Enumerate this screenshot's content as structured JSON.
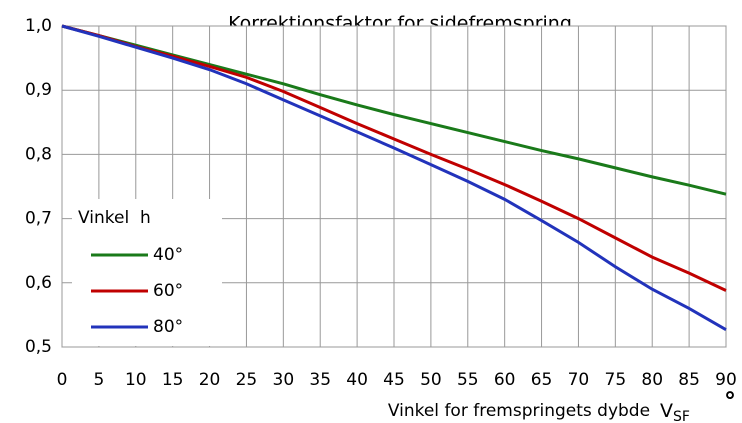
{
  "chart_data": {
    "type": "line",
    "title": "Korrektionsfaktor for sidefremspring",
    "xlabel": "Vinkel for fremspringets dybde",
    "xlabel_symbol": "V",
    "xlabel_subscript": "SF",
    "xlabel_unit": "°",
    "legend_title": "Vinkel  h",
    "legend": "lower-left",
    "grid": true,
    "x": [
      0,
      5,
      10,
      15,
      20,
      25,
      30,
      35,
      40,
      45,
      50,
      55,
      60,
      65,
      70,
      75,
      80,
      85,
      90
    ],
    "xlim": [
      0,
      90
    ],
    "xticks": [
      0,
      5,
      10,
      15,
      20,
      25,
      30,
      35,
      40,
      45,
      50,
      55,
      60,
      65,
      70,
      75,
      80,
      85,
      90
    ],
    "ylim": [
      0.5,
      1.0
    ],
    "yticks": [
      {
        "value": 0.5,
        "label": "0,5"
      },
      {
        "value": 0.6,
        "label": "0,6"
      },
      {
        "value": 0.7,
        "label": "0,7"
      },
      {
        "value": 0.8,
        "label": "0,8"
      },
      {
        "value": 0.9,
        "label": "0,9"
      },
      {
        "value": 1.0,
        "label": "1,0"
      }
    ],
    "series": [
      {
        "name": "40°",
        "color": "#1a7a1a",
        "values": [
          1.0,
          0.985,
          0.97,
          0.955,
          0.94,
          0.925,
          0.91,
          0.893,
          0.877,
          0.862,
          0.848,
          0.834,
          0.82,
          0.806,
          0.793,
          0.779,
          0.765,
          0.752,
          0.738
        ]
      },
      {
        "name": "60°",
        "color": "#c00000",
        "values": [
          1.0,
          0.985,
          0.968,
          0.953,
          0.937,
          0.92,
          0.898,
          0.873,
          0.848,
          0.824,
          0.8,
          0.777,
          0.753,
          0.727,
          0.7,
          0.67,
          0.64,
          0.615,
          0.588
        ]
      },
      {
        "name": "80°",
        "color": "#2233bb",
        "values": [
          1.0,
          0.984,
          0.967,
          0.95,
          0.932,
          0.91,
          0.885,
          0.86,
          0.835,
          0.81,
          0.784,
          0.758,
          0.73,
          0.697,
          0.663,
          0.625,
          0.59,
          0.56,
          0.527
        ]
      }
    ]
  }
}
